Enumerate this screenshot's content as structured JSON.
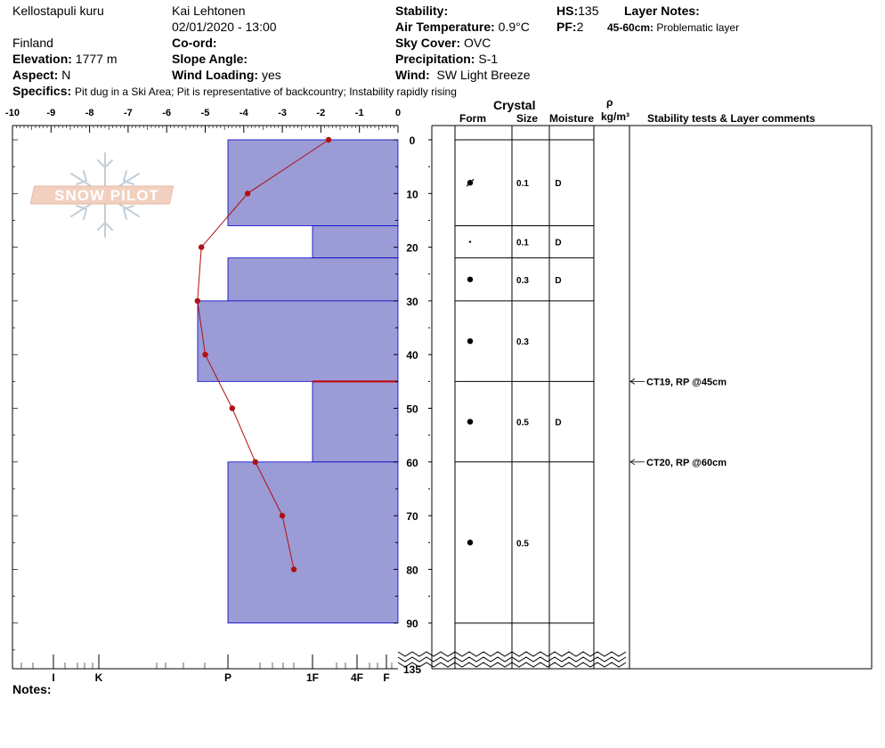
{
  "header": {
    "location": "Kellostapuli kuru",
    "country": "Finland",
    "observer": "Kai Lehtonen",
    "datetime": "02/01/2020 - 13:00",
    "elevation_label": "Elevation:",
    "elevation_value": "1777 m",
    "aspect_label": "Aspect:",
    "aspect_value": "N",
    "coord_label": "Co-ord:",
    "slope_label": "Slope Angle:",
    "wind_loading_label": "Wind Loading:",
    "wind_loading_value": "yes",
    "stability_label": "Stability:",
    "air_temp_label": "Air Temperature:",
    "air_temp_value": "0.9°C",
    "sky_label": "Sky Cover:",
    "sky_value": "OVC",
    "precip_label": "Precipitation:",
    "precip_value": "S-1",
    "wind_label": "Wind:",
    "wind_value": "SW Light Breeze",
    "hs_label": "HS:",
    "hs_value": "135",
    "pf_label": "PF:",
    "pf_value": "2",
    "layer_notes_label": "Layer Notes:",
    "layer_note_range": "45-60cm:",
    "layer_note_text": "Problematic layer",
    "specifics_label": "Specifics:",
    "specifics_value": "Pit dug in a Ski Area;  Pit is representative of backcountry;  Instability rapidly rising",
    "notes_label": "Notes:"
  },
  "logo": {
    "text": "SNOW PILOT"
  },
  "table_headers": {
    "crystal": "Crystal",
    "form": "Form",
    "size": "Size",
    "moisture": "Moisture",
    "rho": "ρ",
    "density_unit": "kg/m³",
    "stability": "Stability tests & Layer comments"
  },
  "colors": {
    "hardness_fill": "#9b9bd6",
    "hardness_stroke": "#0000c8",
    "temp_line": "#b01010",
    "weak_layer": "#c00000"
  },
  "chart_data": {
    "type": "bar",
    "temp_axis": {
      "range": [
        -10,
        0
      ],
      "ticks": [
        "-10",
        "-9",
        "-8",
        "-7",
        "-6",
        "-5",
        "-4",
        "-3",
        "-2",
        "-1",
        "0"
      ]
    },
    "depth_axis": {
      "range": [
        0,
        90
      ],
      "ticks": [
        "0",
        "10",
        "20",
        "30",
        "40",
        "50",
        "60",
        "70",
        "80",
        "90"
      ],
      "break_label": "135"
    },
    "hardness_labels": [
      {
        "label": "I",
        "value": 5
      },
      {
        "label": "K",
        "value": 4
      },
      {
        "label": "P",
        "value": 3
      },
      {
        "label": "1F",
        "value": 2
      },
      {
        "label": "4F",
        "value": 1
      },
      {
        "label": "F",
        "value": 0
      }
    ],
    "hardness_layers": [
      {
        "top": 0,
        "bottom": 16,
        "hardness": "P"
      },
      {
        "top": 16,
        "bottom": 22,
        "hardness": "1F"
      },
      {
        "top": 22,
        "bottom": 30,
        "hardness": "P"
      },
      {
        "top": 30,
        "bottom": 45,
        "hardness": "P+"
      },
      {
        "top": 45,
        "bottom": 60,
        "hardness": "1F"
      },
      {
        "top": 60,
        "bottom": 90,
        "hardness": "P"
      }
    ],
    "temperature_profile": [
      {
        "depth": 0,
        "temp": -1.8
      },
      {
        "depth": 10,
        "temp": -3.9
      },
      {
        "depth": 20,
        "temp": -5.1
      },
      {
        "depth": 30,
        "temp": -5.2
      },
      {
        "depth": 40,
        "temp": -5.0
      },
      {
        "depth": 50,
        "temp": -4.3
      },
      {
        "depth": 60,
        "temp": -3.7
      },
      {
        "depth": 70,
        "temp": -3.0
      },
      {
        "depth": 80,
        "temp": -2.7
      }
    ],
    "layers": [
      {
        "top": 0,
        "bottom": 16,
        "size": "0.1",
        "moisture": "D"
      },
      {
        "top": 16,
        "bottom": 22,
        "size": "0.1",
        "moisture": "D"
      },
      {
        "top": 22,
        "bottom": 30,
        "size": "0.3",
        "moisture": "D"
      },
      {
        "top": 30,
        "bottom": 45,
        "size": "0.3",
        "moisture": ""
      },
      {
        "top": 45,
        "bottom": 60,
        "size": "0.5",
        "moisture": "D"
      },
      {
        "top": 60,
        "bottom": 90,
        "size": "0.5",
        "moisture": ""
      }
    ],
    "stability_tests": [
      {
        "depth": 45,
        "text": "CT19, RP @45cm"
      },
      {
        "depth": 60,
        "text": "CT20, RP @60cm"
      }
    ]
  }
}
